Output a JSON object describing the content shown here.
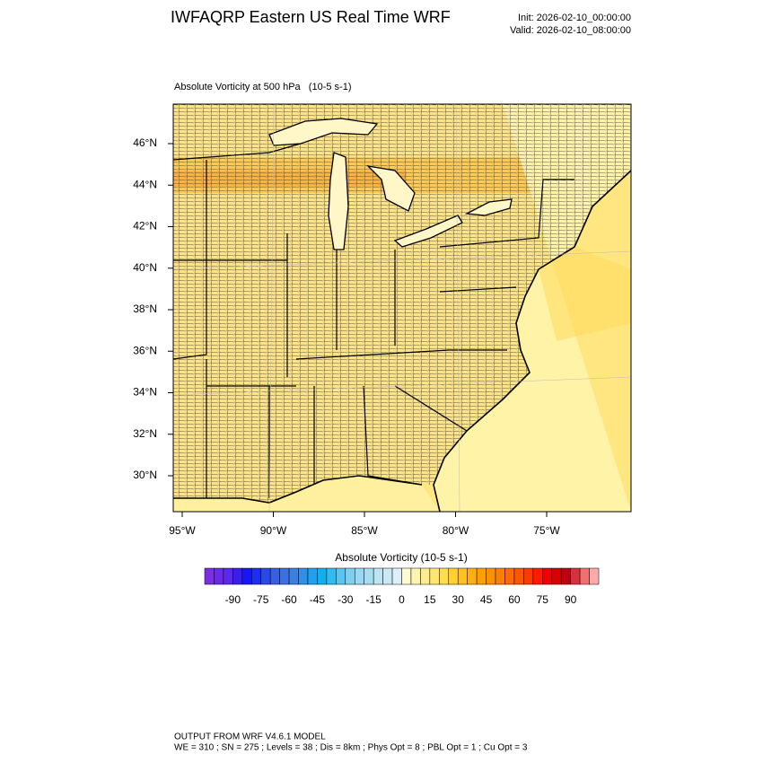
{
  "header": {
    "title": "IWFAQRP Eastern US Real Time WRF",
    "init": "Init: 2026-02-10_00:00:00",
    "valid": "Valid: 2026-02-10_08:00:00"
  },
  "map": {
    "subtitle": "Absolute Vorticity at 500 hPa   (10-5 s-1)",
    "lat_labels": [
      "46°N",
      "44°N",
      "42°N",
      "40°N",
      "38°N",
      "36°N",
      "34°N",
      "32°N",
      "30°N"
    ],
    "lon_labels": [
      "95°W",
      "90°W",
      "85°W",
      "80°W",
      "75°W"
    ]
  },
  "colorbar": {
    "title": "Absolute Vorticity  (10-5 s-1)",
    "clim": [
      -105,
      105
    ],
    "ticks": [
      -90,
      -75,
      -60,
      -45,
      -30,
      -15,
      0,
      15,
      30,
      45,
      60,
      75,
      90
    ],
    "colors": [
      "#7b2fe0",
      "#6a2ae8",
      "#5a28ee",
      "#3a1ef0",
      "#1a16f0",
      "#1c2ff0",
      "#2848e8",
      "#3a5ee0",
      "#3c70e0",
      "#3a80e0",
      "#2f90e8",
      "#20a0f0",
      "#10b0f0",
      "#30bcf0",
      "#5ac6f0",
      "#7ecff0",
      "#98d8f2",
      "#a8dcf0",
      "#bce4f4",
      "#cce8f4",
      "#ddeffa",
      "#fffbd0",
      "#fff5b0",
      "#ffee90",
      "#ffe670",
      "#ffdc50",
      "#ffd030",
      "#ffc020",
      "#ffb010",
      "#ffa000",
      "#ff9000",
      "#ff8000",
      "#ff6a00",
      "#ff5500",
      "#ff3a00",
      "#ff1a00",
      "#f00000",
      "#d80000",
      "#c00010",
      "#d83040",
      "#f07070",
      "#ffaaaa"
    ]
  },
  "footer": {
    "line1": "OUTPUT FROM WRF V4.6.1 MODEL",
    "line2": "WE = 310 ; SN = 275 ; Levels = 38 ; Dis = 8km ; Phys Opt = 8 ; PBL Opt = 1 ; Cu Opt = 3"
  }
}
